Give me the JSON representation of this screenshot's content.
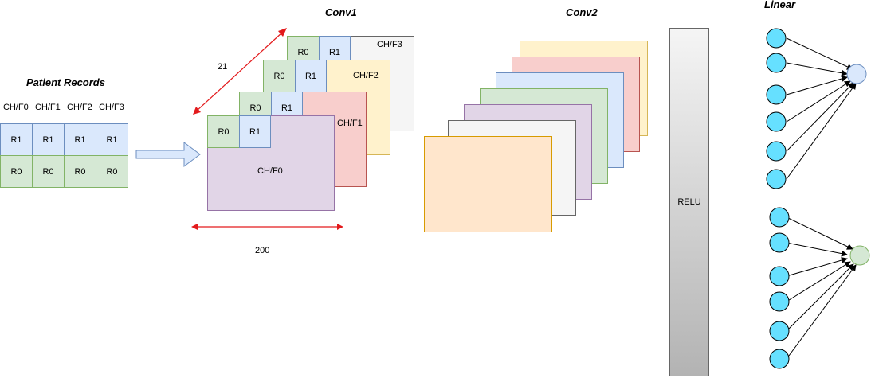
{
  "titles": {
    "patient_records": "Patient Records",
    "conv1": "Conv1",
    "conv2": "Conv2",
    "linear": "Linear"
  },
  "patient_table": {
    "headers": [
      "CH/F0",
      "CH/F1",
      "CH/F2",
      "CH/F3"
    ],
    "row_top": [
      "R1",
      "R1",
      "R1",
      "R1"
    ],
    "row_bottom": [
      "R0",
      "R0",
      "R0",
      "R0"
    ]
  },
  "conv1": {
    "channels": [
      {
        "label": "CH/F3",
        "r0": "R0",
        "r1": "R1",
        "fill": "#f5f5f5",
        "stroke": "#666666"
      },
      {
        "label": "CH/F2",
        "r0": "R0",
        "r1": "R1",
        "fill": "#fff2cc",
        "stroke": "#d6b656"
      },
      {
        "label": "CH/F1",
        "r0": "R0",
        "r1": "R1",
        "fill": "#f8cecc",
        "stroke": "#b85450"
      },
      {
        "label": "CH/F0",
        "r0": "R0",
        "r1": "R1",
        "fill": "#e1d5e7",
        "stroke": "#9673a6"
      }
    ],
    "dim_depth": "21",
    "dim_width": "200"
  },
  "conv2": {
    "fills": [
      "#fff2cc",
      "#f8cecc",
      "#dae8fc",
      "#d5e8d4",
      "#e1d5e7",
      "#f5f5f5",
      "#ffe6cc"
    ],
    "strokes": [
      "#d6b656",
      "#b85450",
      "#6c8ebf",
      "#82b366",
      "#9673a6",
      "#666666",
      "#d79b00"
    ]
  },
  "relu": {
    "label": "RELU"
  },
  "linear": {
    "input_color": "#66e0ff",
    "output_colors": [
      "#dae8fc",
      "#d5e8d4"
    ]
  },
  "colors": {
    "arrow_fill": "#dae8fc",
    "arrow_stroke": "#6c8ebf",
    "dimension_arrow": "#e31a1c"
  }
}
